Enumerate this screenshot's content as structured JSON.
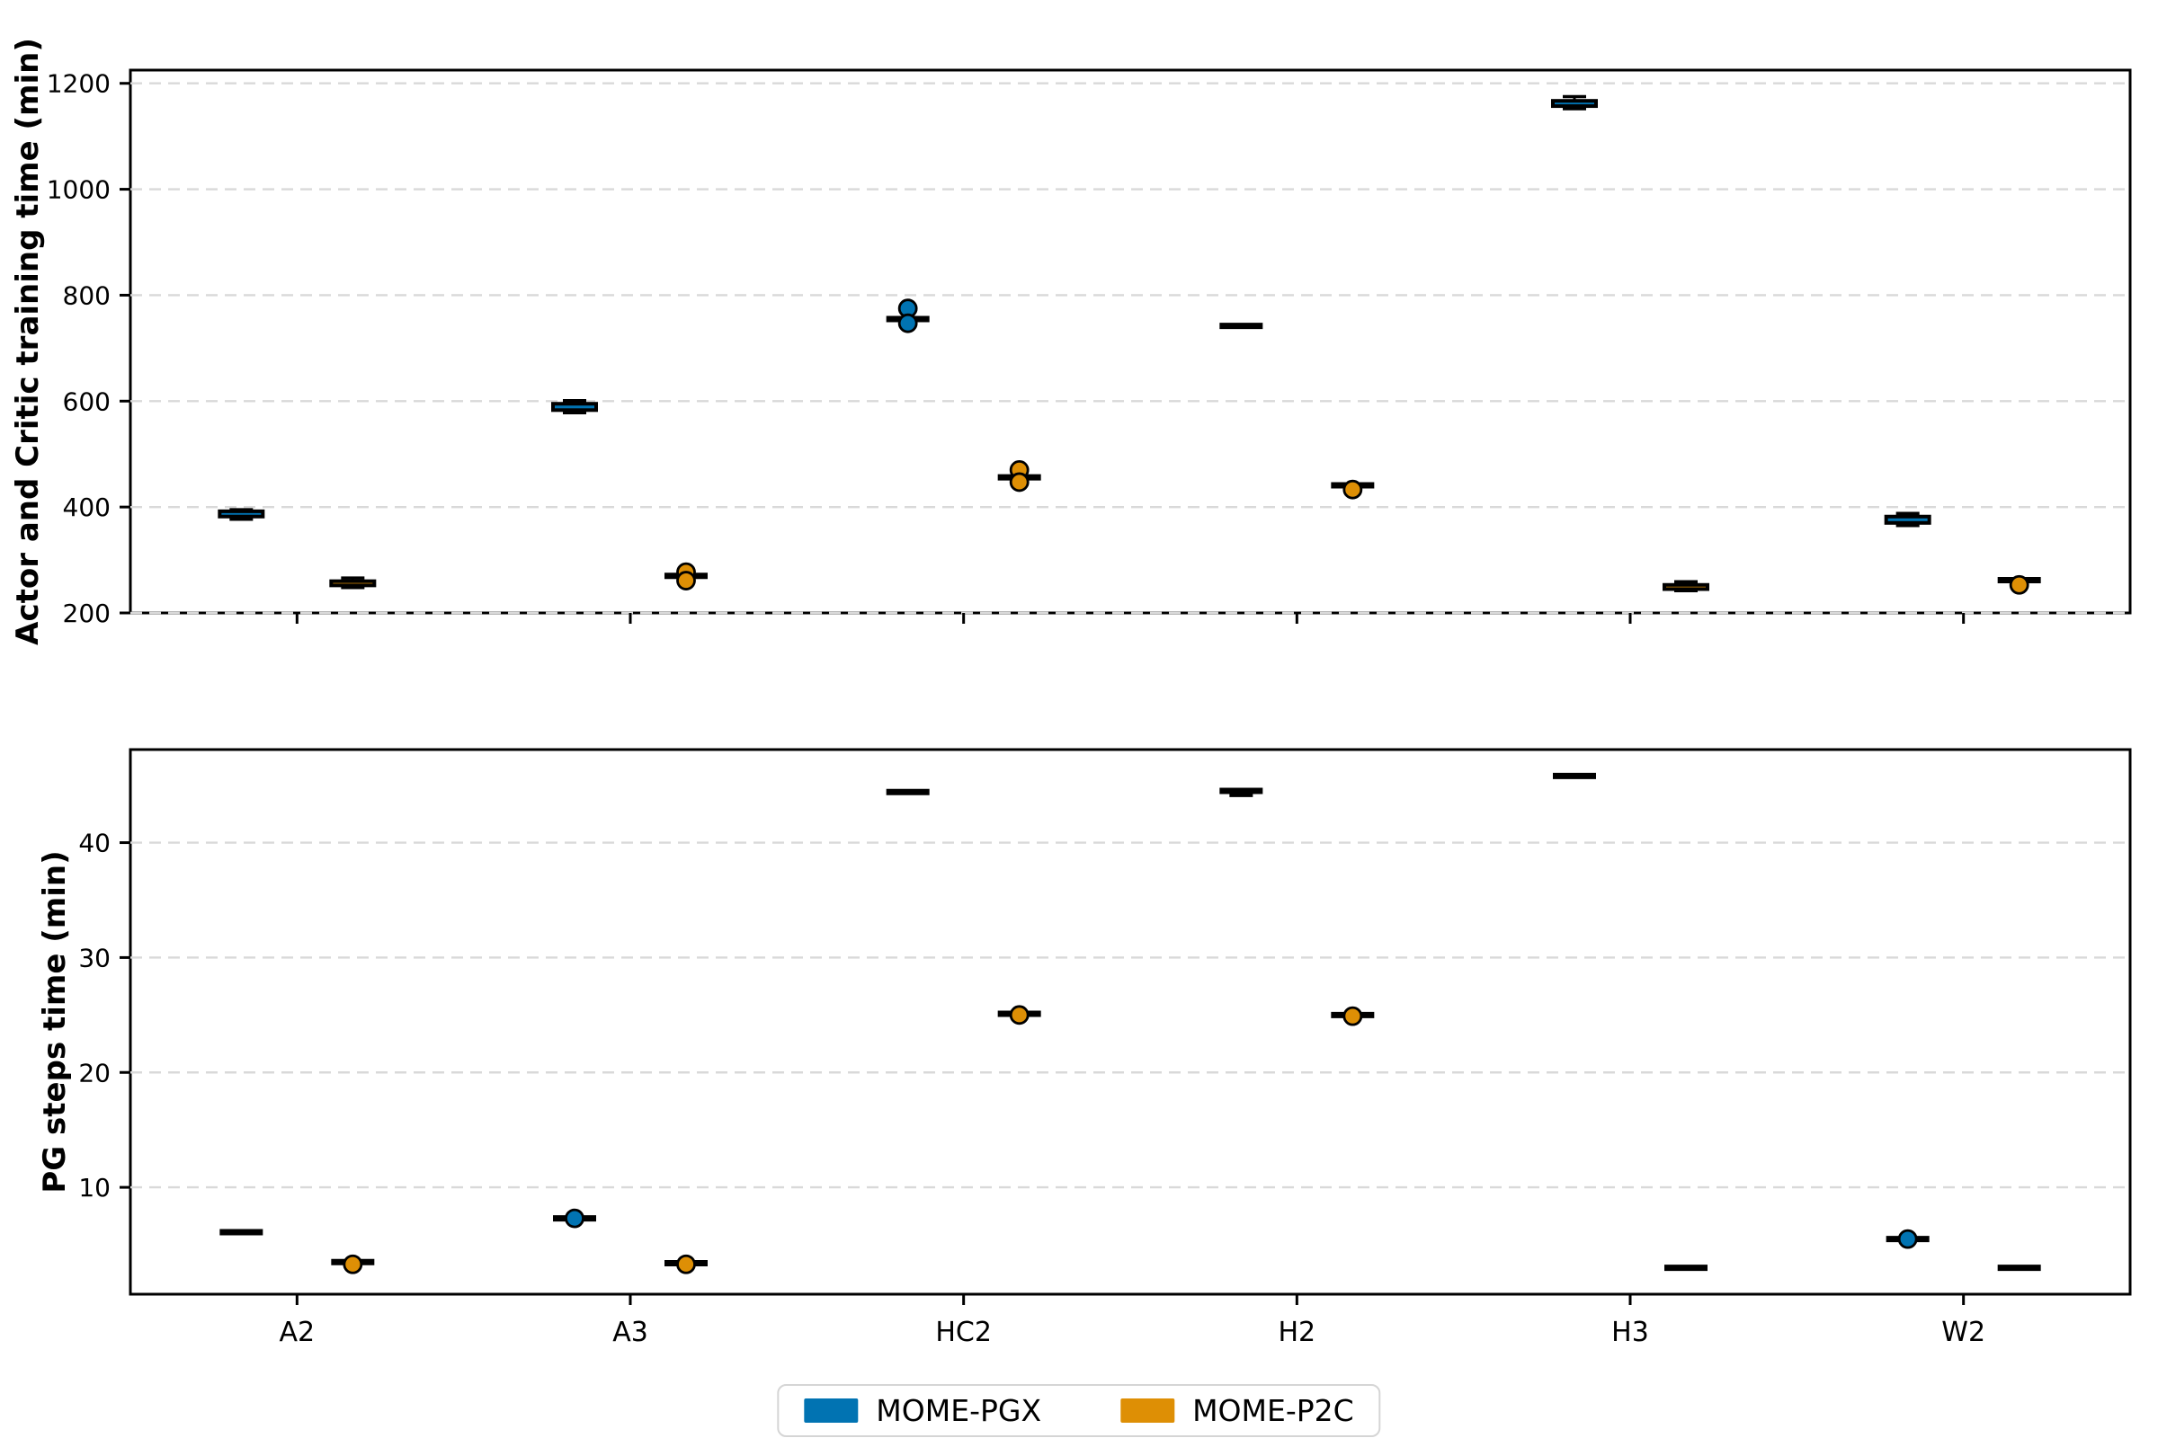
{
  "legend": {
    "items": [
      {
        "label": "MOME-PGX",
        "color": "#0173b2"
      },
      {
        "label": "MOME-P2C",
        "color": "#de8f05"
      }
    ]
  },
  "chart_data": [
    {
      "type": "boxplot",
      "title": "",
      "xlabel": "",
      "ylabel": "Actor and Critic training time (min)",
      "categories": [
        "A2",
        "A3",
        "HC2",
        "H2",
        "H3",
        "W2"
      ],
      "yticks": [
        200,
        400,
        600,
        800,
        1000,
        1200
      ],
      "ylim": [
        200,
        1225
      ],
      "grid": "dashed-horizontal",
      "series": [
        {
          "name": "MOME-PGX",
          "color": "#0173b2",
          "boxes": [
            {
              "med": 387,
              "q1": 382,
              "q3": 392,
              "whislo": 377,
              "whishi": 395,
              "fliers": []
            },
            {
              "med": 589,
              "q1": 583,
              "q3": 595,
              "whislo": 578,
              "whishi": 601,
              "fliers": []
            },
            {
              "med": 755,
              "q1": 755,
              "q3": 755,
              "whislo": 755,
              "whishi": 755,
              "fliers": [
                775,
                747
              ]
            },
            {
              "med": 742,
              "q1": 742,
              "q3": 742,
              "whislo": 742,
              "whishi": 742,
              "fliers": []
            },
            {
              "med": 1162,
              "q1": 1157,
              "q3": 1167,
              "whislo": 1152,
              "whishi": 1175,
              "fliers": []
            },
            {
              "med": 376,
              "q1": 370,
              "q3": 382,
              "whislo": 365,
              "whishi": 388,
              "fliers": []
            }
          ]
        },
        {
          "name": "MOME-P2C",
          "color": "#de8f05",
          "boxes": [
            {
              "med": 256,
              "q1": 252,
              "q3": 260,
              "whislo": 248,
              "whishi": 266,
              "fliers": []
            },
            {
              "med": 270,
              "q1": 270,
              "q3": 270,
              "whislo": 270,
              "whishi": 270,
              "fliers": [
                277,
                261
              ]
            },
            {
              "med": 456,
              "q1": 456,
              "q3": 456,
              "whislo": 456,
              "whishi": 456,
              "fliers": [
                470,
                447
              ]
            },
            {
              "med": 441,
              "q1": 441,
              "q3": 441,
              "whislo": 441,
              "whishi": 441,
              "fliers": [
                433
              ]
            },
            {
              "med": 249,
              "q1": 245,
              "q3": 253,
              "whislo": 242,
              "whishi": 259,
              "fliers": []
            },
            {
              "med": 262,
              "q1": 262,
              "q3": 262,
              "whislo": 262,
              "whishi": 262,
              "fliers": [
                253
              ]
            }
          ]
        }
      ]
    },
    {
      "type": "boxplot",
      "title": "",
      "xlabel": "",
      "ylabel": "PG steps time (min)",
      "categories": [
        "A2",
        "A3",
        "HC2",
        "H2",
        "H3",
        "W2"
      ],
      "yticks": [
        10,
        20,
        30,
        40
      ],
      "ylim": [
        0.7,
        48.1
      ],
      "grid": "dashed-horizontal",
      "series": [
        {
          "name": "MOME-PGX",
          "color": "#0173b2",
          "boxes": [
            {
              "med": 6.1,
              "q1": 6.1,
              "q3": 6.1,
              "whislo": 6.1,
              "whishi": 6.1,
              "fliers": []
            },
            {
              "med": 7.3,
              "q1": 7.3,
              "q3": 7.3,
              "whislo": 7.3,
              "whishi": 7.3,
              "fliers": [
                7.3
              ]
            },
            {
              "med": 44.4,
              "q1": 44.4,
              "q3": 44.4,
              "whislo": 44.4,
              "whishi": 44.4,
              "fliers": []
            },
            {
              "med": 44.5,
              "q1": 44.5,
              "q3": 44.5,
              "whislo": 44.1,
              "whishi": 44.5,
              "fliers": []
            },
            {
              "med": 45.8,
              "q1": 45.8,
              "q3": 45.8,
              "whislo": 45.8,
              "whishi": 45.8,
              "fliers": []
            },
            {
              "med": 5.5,
              "q1": 5.5,
              "q3": 5.5,
              "whislo": 5.5,
              "whishi": 5.5,
              "fliers": [
                5.5
              ]
            }
          ]
        },
        {
          "name": "MOME-P2C",
          "color": "#de8f05",
          "boxes": [
            {
              "med": 3.5,
              "q1": 3.5,
              "q3": 3.5,
              "whislo": 3.5,
              "whishi": 3.5,
              "fliers": [
                3.3
              ]
            },
            {
              "med": 3.4,
              "q1": 3.4,
              "q3": 3.4,
              "whislo": 3.4,
              "whishi": 3.4,
              "fliers": [
                3.3
              ]
            },
            {
              "med": 25.1,
              "q1": 25.1,
              "q3": 25.1,
              "whislo": 25.1,
              "whishi": 25.1,
              "fliers": [
                25.0
              ]
            },
            {
              "med": 25.0,
              "q1": 25.0,
              "q3": 25.0,
              "whislo": 25.0,
              "whishi": 25.0,
              "fliers": [
                24.9
              ]
            },
            {
              "med": 3.0,
              "q1": 3.0,
              "q3": 3.0,
              "whislo": 3.0,
              "whishi": 3.0,
              "fliers": []
            },
            {
              "med": 3.0,
              "q1": 3.0,
              "q3": 3.0,
              "whislo": 3.0,
              "whishi": 3.0,
              "fliers": []
            }
          ]
        }
      ]
    }
  ]
}
